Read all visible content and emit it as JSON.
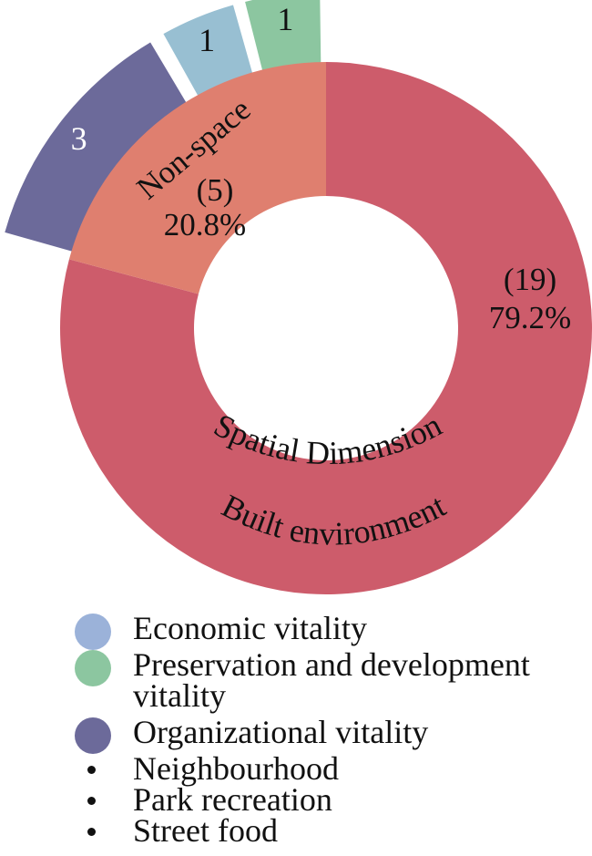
{
  "chart_data": {
    "type": "pie",
    "inner": {
      "slices": [
        {
          "label": "Spatial Dimension",
          "sublabel": "Built environment",
          "count_label": "(19)",
          "percent_label": "79.2%",
          "value": 19,
          "color": "#cd5c6b"
        },
        {
          "label": "Non-space",
          "count_label": "(5)",
          "percent_label": "20.8%",
          "value": 5,
          "color": "#df7f6f"
        }
      ]
    },
    "outer": {
      "slices": [
        {
          "series": "Organizational vitality",
          "value": 3,
          "value_label": "3",
          "color": "#6c6a9a"
        },
        {
          "series": "Economic vitality",
          "value": 1,
          "value_label": "1",
          "color": "#98bfd2"
        },
        {
          "series": "Preservation and development vitality",
          "value": 1,
          "value_label": "1",
          "color": "#8cc6a0"
        }
      ]
    },
    "legend": [
      {
        "label": "Economic vitality",
        "color": "#9bb2d9"
      },
      {
        "label": "Preservation and development vitality",
        "color": "#8cc6a0"
      },
      {
        "label": "Organizational vitality",
        "color": "#6c6a9a"
      }
    ],
    "bullets": [
      "Neighbourhood",
      "Park recreation",
      "Street food"
    ]
  }
}
